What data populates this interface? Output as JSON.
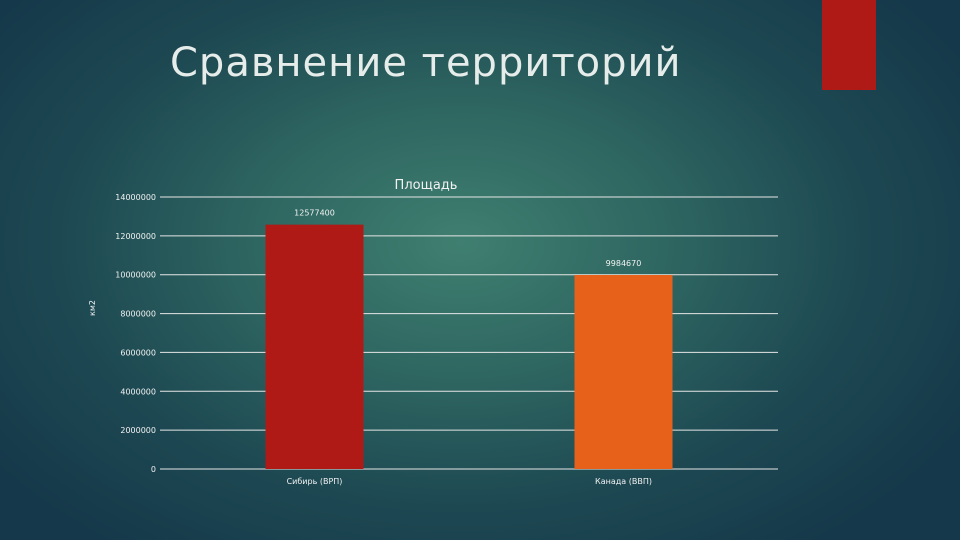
{
  "slide": {
    "title": "Сравнение территорий"
  },
  "colors": {
    "accent": "#b01a16",
    "gridline": "#e6e6e6",
    "text": "#f2f2f2"
  },
  "chart_data": {
    "type": "bar",
    "title": "Площадь",
    "xlabel": "",
    "ylabel": "км2",
    "categories": [
      "Сибирь (ВРП)",
      "Канада (ВВП)"
    ],
    "values": [
      12577400,
      9984670
    ],
    "value_labels": [
      "12577400",
      "9984670"
    ],
    "bar_colors": [
      "#b01a16",
      "#e8611a"
    ],
    "ylim": [
      0,
      14000000
    ],
    "yticks": [
      0,
      2000000,
      4000000,
      6000000,
      8000000,
      10000000,
      12000000,
      14000000
    ],
    "ytick_labels": [
      "0",
      "2000000",
      "4000000",
      "6000000",
      "8000000",
      "10000000",
      "12000000",
      "14000000"
    ],
    "grid": true,
    "legend": "none"
  }
}
